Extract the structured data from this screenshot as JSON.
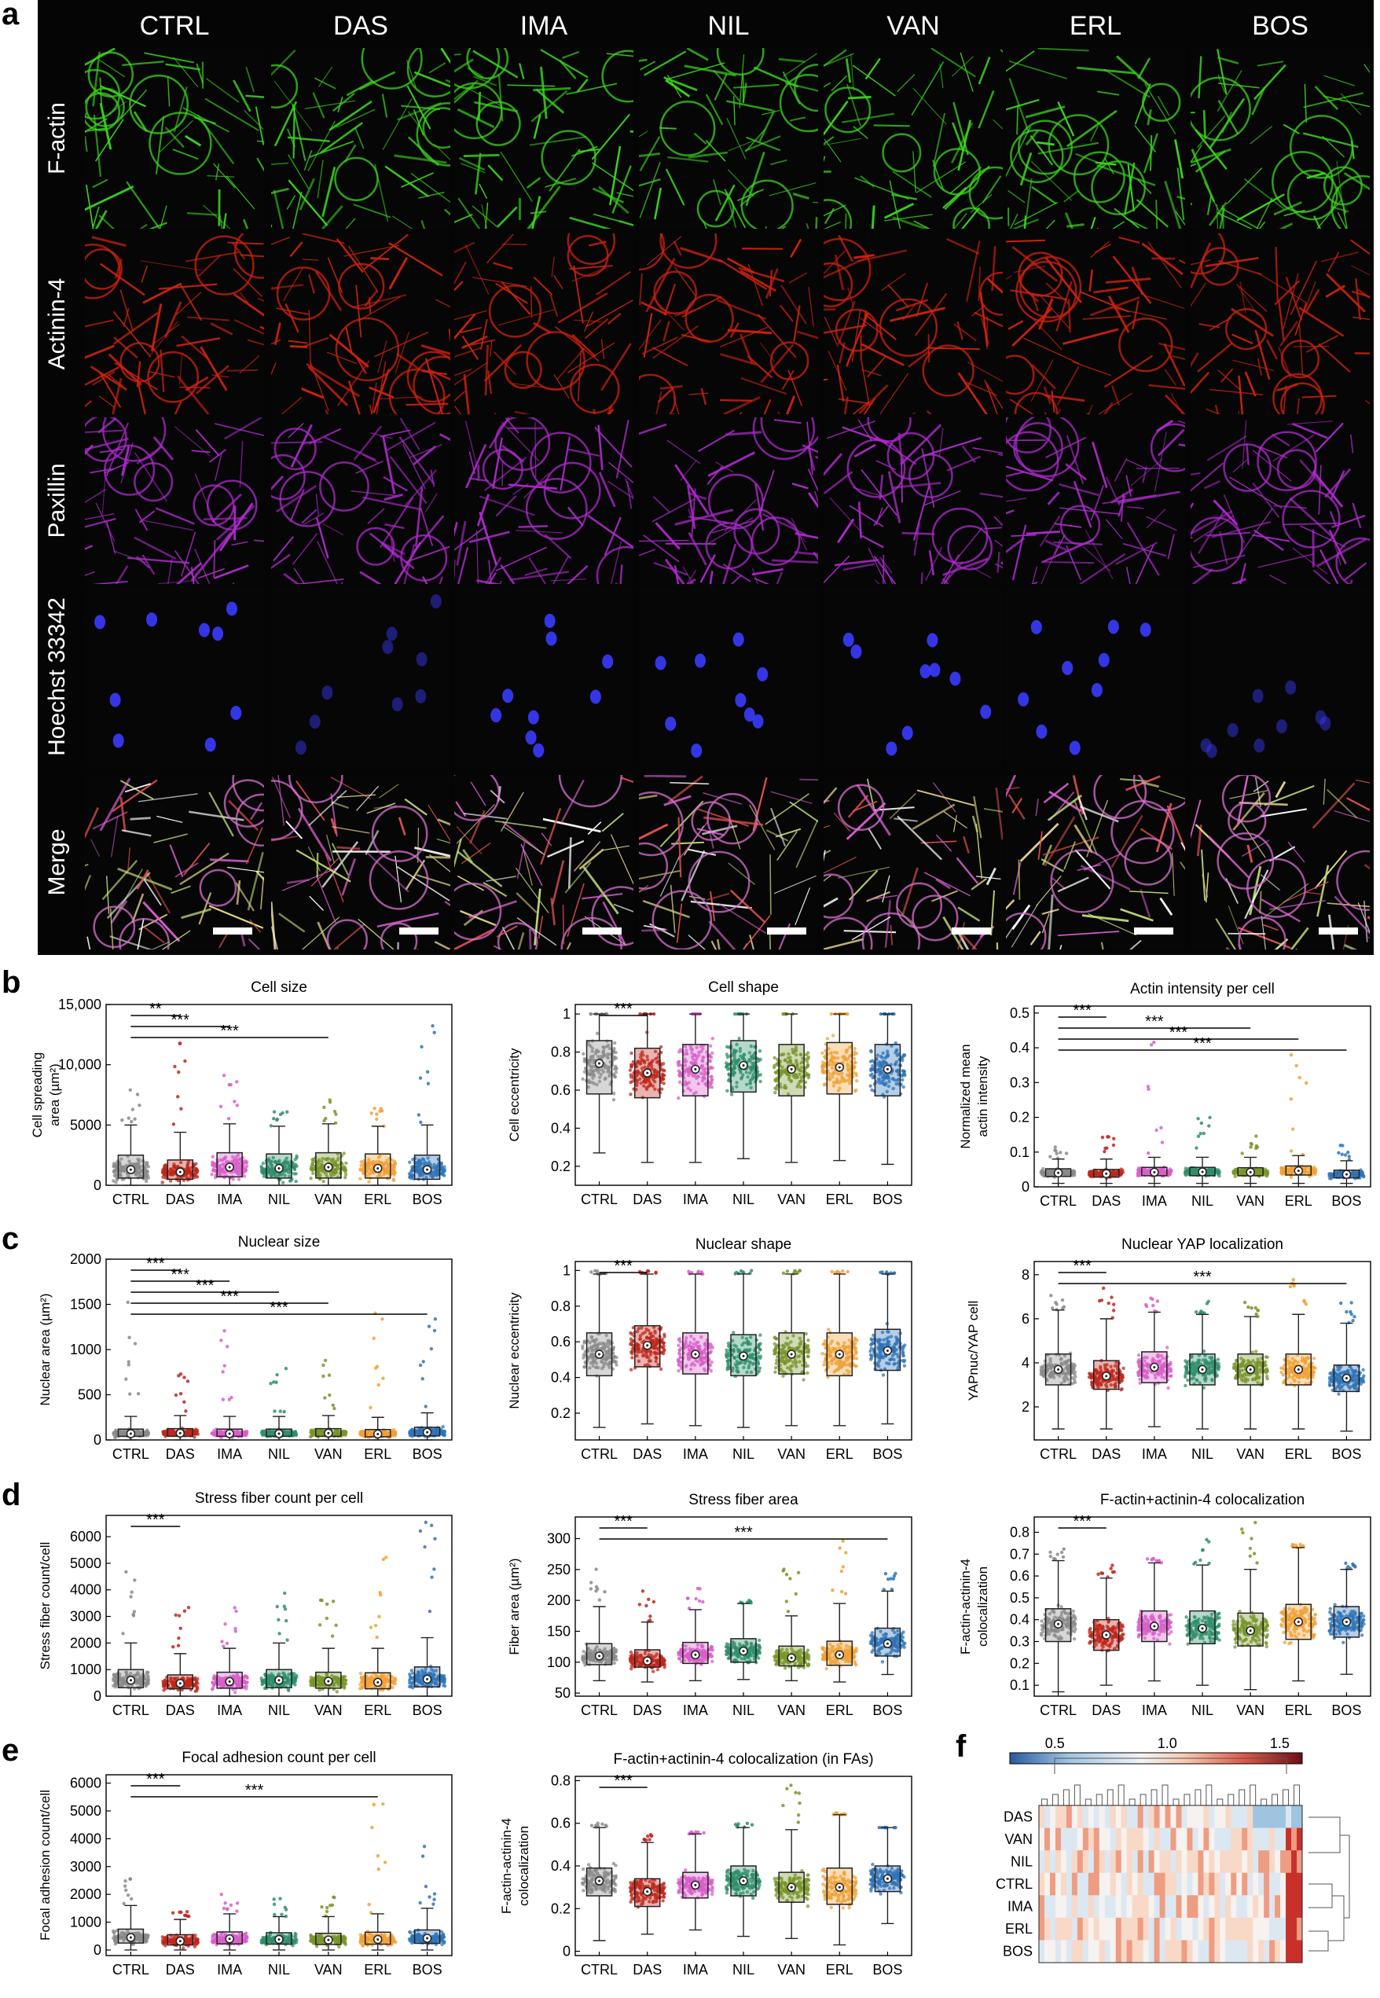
{
  "panel_labels": {
    "a": "a",
    "b": "b",
    "c": "c",
    "d": "d",
    "e": "e",
    "f": "f"
  },
  "micrographs": {
    "columns": [
      "CTRL",
      "DAS",
      "IMA",
      "NIL",
      "VAN",
      "ERL",
      "BOS"
    ],
    "rows": [
      {
        "label": "F-actin",
        "color": "#3bd61e"
      },
      {
        "label": "Actinin-4",
        "color": "#d3220f"
      },
      {
        "label": "Paxillin",
        "color": "#b02ad0"
      },
      {
        "label": "Hoechst 33342",
        "color": "#3a3cff"
      },
      {
        "label": "Merge",
        "color": "#d8c88a"
      }
    ]
  },
  "group_colors": {
    "CTRL": "#8a8a8a",
    "DAS": "#c0271c",
    "IMA": "#d85fc8",
    "NIL": "#2f8f6b",
    "VAN": "#78962a",
    "ERL": "#f0a035",
    "BOS": "#2f74b8"
  },
  "chart_data": [
    {
      "id": "cell-size",
      "type": "box",
      "title": "Cell size",
      "ylabel": "Cell spreading area (µm²)",
      "categories": [
        "CTRL",
        "DAS",
        "IMA",
        "NIL",
        "VAN",
        "ERL",
        "BOS"
      ],
      "ylim": [
        0,
        15000
      ],
      "yticks": [
        "0",
        "5000",
        "10,000",
        "15,000"
      ],
      "ytick_values": [
        0,
        5000,
        10000,
        15000
      ],
      "median": [
        1300,
        1100,
        1500,
        1400,
        1500,
        1400,
        1300
      ],
      "q1": [
        600,
        500,
        700,
        600,
        600,
        600,
        500
      ],
      "q3": [
        2500,
        2100,
        2700,
        2600,
        2700,
        2600,
        2500
      ],
      "whisker_low": [
        0,
        0,
        0,
        0,
        0,
        0,
        0
      ],
      "whisker_high": [
        5000,
        4400,
        5100,
        4900,
        5100,
        4900,
        5000
      ],
      "max": [
        8000,
        12000,
        10000,
        7000,
        7500,
        7000,
        14000
      ],
      "significance": [
        {
          "from": "CTRL",
          "to": "DAS",
          "label": "**"
        },
        {
          "from": "CTRL",
          "to": "IMA",
          "label": "***"
        },
        {
          "from": "CTRL",
          "to": "VAN",
          "label": "***"
        }
      ]
    },
    {
      "id": "cell-shape",
      "type": "box",
      "title": "Cell shape",
      "ylabel": "Cell eccentricity",
      "categories": [
        "CTRL",
        "DAS",
        "IMA",
        "NIL",
        "VAN",
        "ERL",
        "BOS"
      ],
      "ylim": [
        0.1,
        1.05
      ],
      "yticks": [
        "0.2",
        "0.4",
        "0.6",
        "0.8",
        "1"
      ],
      "ytick_values": [
        0.2,
        0.4,
        0.6,
        0.8,
        1
      ],
      "median": [
        0.74,
        0.69,
        0.71,
        0.73,
        0.71,
        0.72,
        0.71
      ],
      "q1": [
        0.58,
        0.56,
        0.57,
        0.59,
        0.57,
        0.58,
        0.57
      ],
      "q3": [
        0.86,
        0.82,
        0.84,
        0.86,
        0.84,
        0.85,
        0.84
      ],
      "whisker_low": [
        0.27,
        0.22,
        0.22,
        0.24,
        0.22,
        0.23,
        0.21
      ],
      "whisker_high": [
        1,
        1,
        1,
        1,
        1,
        1,
        1
      ],
      "max": [
        1,
        1,
        1,
        1,
        1,
        1,
        1
      ],
      "significance": [
        {
          "from": "CTRL",
          "to": "DAS",
          "label": "***"
        }
      ]
    },
    {
      "id": "actin-intensity",
      "type": "box",
      "title": "Actin intensity per cell",
      "ylabel": "Normalized mean actin intensity",
      "categories": [
        "CTRL",
        "DAS",
        "IMA",
        "NIL",
        "VAN",
        "ERL",
        "BOS"
      ],
      "ylim": [
        0,
        0.52
      ],
      "yticks": [
        "0",
        "0.1",
        "0.2",
        "0.3",
        "0.4",
        "0.5"
      ],
      "ytick_values": [
        0,
        0.1,
        0.2,
        0.3,
        0.4,
        0.5
      ],
      "median": [
        0.04,
        0.038,
        0.042,
        0.043,
        0.042,
        0.046,
        0.036
      ],
      "q1": [
        0.03,
        0.028,
        0.032,
        0.032,
        0.032,
        0.034,
        0.026
      ],
      "q3": [
        0.052,
        0.05,
        0.056,
        0.056,
        0.055,
        0.06,
        0.048
      ],
      "whisker_low": [
        0.01,
        0.01,
        0.01,
        0.01,
        0.01,
        0.01,
        0.01
      ],
      "whisker_high": [
        0.08,
        0.08,
        0.085,
        0.085,
        0.085,
        0.09,
        0.075
      ],
      "max": [
        0.12,
        0.15,
        0.43,
        0.2,
        0.15,
        0.48,
        0.12
      ],
      "significance": [
        {
          "from": "CTRL",
          "to": "DAS",
          "label": "***"
        },
        {
          "from": "CTRL",
          "to": "VAN",
          "label": "***"
        },
        {
          "from": "CTRL",
          "to": "ERL",
          "label": "***"
        },
        {
          "from": "CTRL",
          "to": "BOS",
          "label": "***"
        }
      ]
    },
    {
      "id": "nuclear-size",
      "type": "box",
      "title": "Nuclear size",
      "ylabel": "Nuclear area (µm²)",
      "categories": [
        "CTRL",
        "DAS",
        "IMA",
        "NIL",
        "VAN",
        "ERL",
        "BOS"
      ],
      "ylim": [
        0,
        2000
      ],
      "yticks": [
        "0",
        "500",
        "1000",
        "1500",
        "2000"
      ],
      "ytick_values": [
        0,
        500,
        1000,
        1500,
        2000
      ],
      "median": [
        70,
        75,
        70,
        70,
        75,
        65,
        85
      ],
      "q1": [
        40,
        40,
        40,
        40,
        40,
        35,
        45
      ],
      "q3": [
        120,
        125,
        120,
        120,
        125,
        115,
        140
      ],
      "whisker_low": [
        0,
        0,
        0,
        0,
        0,
        0,
        0
      ],
      "whisker_high": [
        260,
        270,
        260,
        260,
        270,
        250,
        300
      ],
      "max": [
        1550,
        800,
        1420,
        820,
        950,
        1420,
        1340
      ],
      "significance": [
        {
          "from": "CTRL",
          "to": "DAS",
          "label": "***"
        },
        {
          "from": "CTRL",
          "to": "IMA",
          "label": "***"
        },
        {
          "from": "CTRL",
          "to": "NIL",
          "label": "***"
        },
        {
          "from": "CTRL",
          "to": "VAN",
          "label": "***"
        },
        {
          "from": "CTRL",
          "to": "BOS",
          "label": "***"
        }
      ]
    },
    {
      "id": "nuclear-shape",
      "type": "box",
      "title": "Nuclear shape",
      "ylabel": "Nuclear eccentricity",
      "categories": [
        "CTRL",
        "DAS",
        "IMA",
        "NIL",
        "VAN",
        "ERL",
        "BOS"
      ],
      "ylim": [
        0.05,
        1.05
      ],
      "yticks": [
        "0.2",
        "0.4",
        "0.6",
        "0.8",
        "1"
      ],
      "ytick_values": [
        0.2,
        0.4,
        0.6,
        0.8,
        1
      ],
      "median": [
        0.53,
        0.58,
        0.53,
        0.52,
        0.53,
        0.53,
        0.55
      ],
      "q1": [
        0.41,
        0.46,
        0.42,
        0.41,
        0.42,
        0.41,
        0.44
      ],
      "q3": [
        0.65,
        0.69,
        0.65,
        0.64,
        0.65,
        0.65,
        0.67
      ],
      "whisker_low": [
        0.12,
        0.14,
        0.13,
        0.12,
        0.13,
        0.13,
        0.14
      ],
      "whisker_high": [
        0.98,
        0.98,
        0.98,
        0.98,
        0.98,
        0.98,
        0.98
      ],
      "max": [
        1,
        1,
        1,
        1,
        1,
        1,
        1
      ],
      "significance": [
        {
          "from": "CTRL",
          "to": "DAS",
          "label": "***"
        }
      ]
    },
    {
      "id": "nuclear-yap",
      "type": "box",
      "title": "Nuclear YAP localization",
      "ylabel": "YAPnuc/YAP cell",
      "categories": [
        "CTRL",
        "DAS",
        "IMA",
        "NIL",
        "VAN",
        "ERL",
        "BOS"
      ],
      "ylim": [
        0.5,
        8.6
      ],
      "yticks": [
        "2",
        "4",
        "6",
        "8"
      ],
      "ytick_values": [
        2,
        4,
        6,
        8
      ],
      "median": [
        3.7,
        3.4,
        3.8,
        3.7,
        3.7,
        3.7,
        3.3
      ],
      "q1": [
        3.0,
        2.8,
        3.1,
        3.0,
        3.0,
        3.0,
        2.7
      ],
      "q3": [
        4.4,
        4.1,
        4.5,
        4.4,
        4.4,
        4.4,
        3.9
      ],
      "whisker_low": [
        1.0,
        1.0,
        1.1,
        1.0,
        1.0,
        1.0,
        0.9
      ],
      "whisker_high": [
        6.4,
        6.0,
        6.3,
        6.2,
        6.1,
        6.2,
        5.8
      ],
      "max": [
        7.2,
        7.4,
        7.0,
        6.8,
        6.9,
        7.9,
        6.8
      ],
      "significance": [
        {
          "from": "CTRL",
          "to": "DAS",
          "label": "***"
        },
        {
          "from": "CTRL",
          "to": "BOS",
          "label": "***"
        }
      ]
    },
    {
      "id": "fiber-count",
      "type": "box",
      "title": "Stress fiber count per cell",
      "ylabel": "Stress fiber count/cell",
      "categories": [
        "CTRL",
        "DAS",
        "IMA",
        "NIL",
        "VAN",
        "ERL",
        "BOS"
      ],
      "ylim": [
        0,
        6800
      ],
      "yticks": [
        "0",
        "1000",
        "2000",
        "3000",
        "4000",
        "5000",
        "6000"
      ],
      "ytick_values": [
        0,
        1000,
        2000,
        3000,
        4000,
        5000,
        6000
      ],
      "median": [
        600,
        480,
        550,
        600,
        560,
        520,
        640
      ],
      "q1": [
        320,
        280,
        300,
        320,
        300,
        280,
        350
      ],
      "q3": [
        1000,
        800,
        900,
        1000,
        900,
        880,
        1100
      ],
      "whisker_low": [
        0,
        0,
        0,
        0,
        0,
        0,
        0
      ],
      "whisker_high": [
        2000,
        1600,
        1800,
        2000,
        1800,
        1800,
        2200
      ],
      "max": [
        4700,
        3500,
        3700,
        4200,
        3800,
        5400,
        6600
      ],
      "significance": [
        {
          "from": "CTRL",
          "to": "DAS",
          "label": "***"
        }
      ]
    },
    {
      "id": "fiber-area",
      "type": "box",
      "title": "Stress fiber area",
      "ylabel": "Fiber area (µm²)",
      "categories": [
        "CTRL",
        "DAS",
        "IMA",
        "NIL",
        "VAN",
        "ERL",
        "BOS"
      ],
      "ylim": [
        45,
        335
      ],
      "yticks": [
        "50",
        "100",
        "150",
        "200",
        "250",
        "300"
      ],
      "ytick_values": [
        50,
        100,
        150,
        200,
        250,
        300
      ],
      "median": [
        110,
        102,
        112,
        118,
        107,
        112,
        130
      ],
      "q1": [
        96,
        92,
        98,
        100,
        94,
        95,
        110
      ],
      "q3": [
        130,
        120,
        132,
        138,
        126,
        134,
        155
      ],
      "whisker_low": [
        70,
        68,
        70,
        72,
        70,
        68,
        80
      ],
      "whisker_high": [
        190,
        165,
        185,
        195,
        175,
        195,
        215
      ],
      "max": [
        255,
        215,
        220,
        200,
        260,
        320,
        245
      ],
      "significance": [
        {
          "from": "CTRL",
          "to": "DAS",
          "label": "***"
        },
        {
          "from": "CTRL",
          "to": "BOS",
          "label": "***"
        }
      ]
    },
    {
      "id": "colocalization",
      "type": "box",
      "title": "F-actin+actinin-4 colocalization",
      "ylabel": "F-actin-actinin-4 colocalization",
      "categories": [
        "CTRL",
        "DAS",
        "IMA",
        "NIL",
        "VAN",
        "ERL",
        "BOS"
      ],
      "ylim": [
        0.05,
        0.87
      ],
      "yticks": [
        "0.1",
        "0.2",
        "0.3",
        "0.4",
        "0.5",
        "0.6",
        "0.7",
        "0.8"
      ],
      "ytick_values": [
        0.1,
        0.2,
        0.3,
        0.4,
        0.5,
        0.6,
        0.7,
        0.8
      ],
      "median": [
        0.38,
        0.33,
        0.37,
        0.36,
        0.35,
        0.39,
        0.39
      ],
      "q1": [
        0.3,
        0.26,
        0.3,
        0.29,
        0.28,
        0.31,
        0.32
      ],
      "q3": [
        0.45,
        0.4,
        0.44,
        0.44,
        0.43,
        0.47,
        0.46
      ],
      "whisker_low": [
        0.07,
        0.1,
        0.12,
        0.1,
        0.08,
        0.12,
        0.15
      ],
      "whisker_high": [
        0.67,
        0.59,
        0.66,
        0.65,
        0.63,
        0.73,
        0.63
      ],
      "max": [
        0.73,
        0.65,
        0.68,
        0.78,
        0.85,
        0.75,
        0.66
      ],
      "significance": [
        {
          "from": "CTRL",
          "to": "DAS",
          "label": "***"
        }
      ]
    },
    {
      "id": "fa-count",
      "type": "box",
      "title": "Focal adhesion count per cell",
      "ylabel": "Focal adhesion count/cell",
      "categories": [
        "CTRL",
        "DAS",
        "IMA",
        "NIL",
        "VAN",
        "ERL",
        "BOS"
      ],
      "ylim": [
        -200,
        6300
      ],
      "yticks": [
        "0",
        "1000",
        "2000",
        "3000",
        "4000",
        "5000",
        "6000"
      ],
      "ytick_values": [
        0,
        1000,
        2000,
        3000,
        4000,
        5000,
        6000
      ],
      "median": [
        450,
        320,
        400,
        380,
        360,
        380,
        420
      ],
      "q1": [
        250,
        180,
        220,
        210,
        200,
        210,
        240
      ],
      "q3": [
        750,
        550,
        650,
        620,
        600,
        640,
        720
      ],
      "whisker_low": [
        0,
        0,
        0,
        0,
        0,
        0,
        0
      ],
      "whisker_high": [
        1600,
        1100,
        1300,
        1200,
        1200,
        1300,
        1500
      ],
      "max": [
        2600,
        1500,
        2000,
        2000,
        1900,
        5700,
        3800
      ],
      "significance": [
        {
          "from": "CTRL",
          "to": "DAS",
          "label": "***"
        },
        {
          "from": "CTRL",
          "to": "ERL",
          "label": "***"
        }
      ]
    },
    {
      "id": "colocalization-fa",
      "type": "box",
      "title": "F-actin+actinin-4 colocalization (in FAs)",
      "ylabel": "F-actin-actinin-4 colocalization",
      "categories": [
        "CTRL",
        "DAS",
        "IMA",
        "NIL",
        "VAN",
        "ERL",
        "BOS"
      ],
      "ylim": [
        -0.02,
        0.82
      ],
      "yticks": [
        "0",
        "0.2",
        "0.4",
        "0.6",
        "0.8"
      ],
      "ytick_values": [
        0,
        0.2,
        0.4,
        0.6,
        0.8
      ],
      "median": [
        0.33,
        0.28,
        0.31,
        0.33,
        0.3,
        0.3,
        0.34
      ],
      "q1": [
        0.26,
        0.21,
        0.25,
        0.26,
        0.23,
        0.22,
        0.28
      ],
      "q3": [
        0.39,
        0.34,
        0.37,
        0.4,
        0.37,
        0.39,
        0.4
      ],
      "whisker_low": [
        0.05,
        0.08,
        0.1,
        0.07,
        0.06,
        0.03,
        0.13
      ],
      "whisker_high": [
        0.58,
        0.51,
        0.55,
        0.58,
        0.57,
        0.64,
        0.58
      ],
      "max": [
        0.6,
        0.55,
        0.56,
        0.6,
        0.8,
        0.65,
        0.58
      ],
      "significance": [
        {
          "from": "CTRL",
          "to": "DAS",
          "label": "***"
        }
      ]
    },
    {
      "id": "heatmap",
      "type": "heatmap",
      "colorbar_ticks": [
        "0.5",
        "1.0",
        "1.5"
      ],
      "colorbar_tick_values": [
        0.5,
        1.0,
        1.5
      ],
      "clim": [
        0.3,
        1.6
      ],
      "rows": [
        "DAS",
        "VAN",
        "NIL",
        "CTRL",
        "IMA",
        "ERL",
        "BOS"
      ]
    }
  ]
}
